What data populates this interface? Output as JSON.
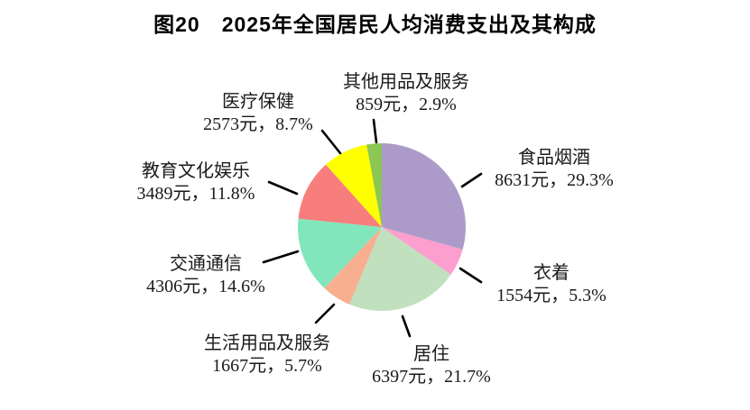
{
  "figure": {
    "title": "图20　2025年全国居民人均消费支出及其构成"
  },
  "chart_data": {
    "type": "pie",
    "title": "图20　2025年全国居民人均消费支出及其构成",
    "unit": "元",
    "start_angle": "12-oclock",
    "direction": "clockwise",
    "legend_position": "none",
    "total_percent": 100.0,
    "slices": [
      {
        "label": "食品烟酒",
        "value_yuan": 8631,
        "percent": 29.3,
        "value_text": "8631元，29.3%",
        "color": "#AC9BC8"
      },
      {
        "label": "衣着",
        "value_yuan": 1554,
        "percent": 5.3,
        "value_text": "1554元，5.3%",
        "color": "#FC9ECE"
      },
      {
        "label": "居住",
        "value_yuan": 6397,
        "percent": 21.7,
        "value_text": "6397元，21.7%",
        "color": "#C0E0BE"
      },
      {
        "label": "生活用品及服务",
        "value_yuan": 1667,
        "percent": 5.7,
        "value_text": "1667元，5.7%",
        "color": "#F8AF90"
      },
      {
        "label": "交通通信",
        "value_yuan": 4306,
        "percent": 14.6,
        "value_text": "4306元，14.6%",
        "color": "#82E6BC"
      },
      {
        "label": "教育文化娱乐",
        "value_yuan": 3489,
        "percent": 11.8,
        "value_text": "3489元，11.8%",
        "color": "#F87D7D"
      },
      {
        "label": "医疗保健",
        "value_yuan": 2573,
        "percent": 8.7,
        "value_text": "2573元，8.7%",
        "color": "#FFFF00"
      },
      {
        "label": "其他用品及服务",
        "value_yuan": 859,
        "percent": 2.9,
        "value_text": "859元，2.9%",
        "color": "#8CC653"
      }
    ]
  }
}
